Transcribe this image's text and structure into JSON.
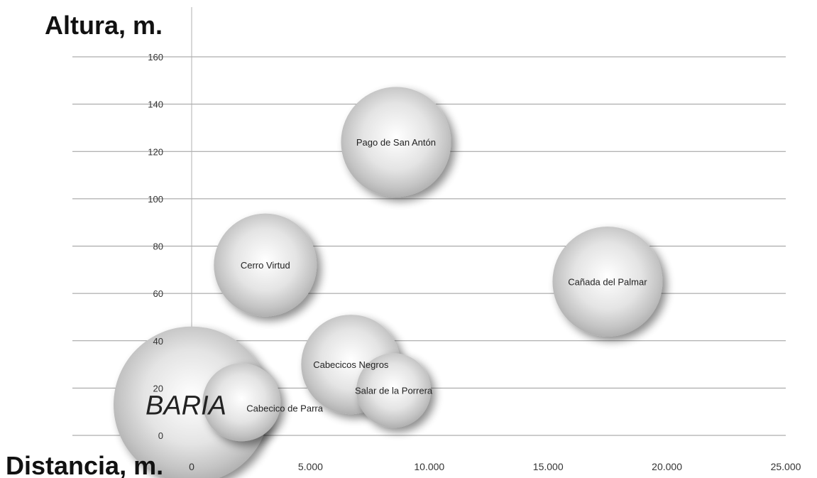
{
  "chart_data": {
    "type": "bubble",
    "ylabel": "Altura, m.",
    "xlabel": "Distancia, m.",
    "xlim": [
      -5000,
      25000
    ],
    "ylim": [
      0,
      160
    ],
    "xticks": [
      {
        "value": 0,
        "label": "0"
      },
      {
        "value": 5000,
        "label": "5.000"
      },
      {
        "value": 10000,
        "label": "10.000"
      },
      {
        "value": 15000,
        "label": "15.000"
      },
      {
        "value": 20000,
        "label": "20.000"
      },
      {
        "value": 25000,
        "label": "25.000"
      }
    ],
    "yticks": [
      {
        "value": 0,
        "label": "0"
      },
      {
        "value": 20,
        "label": "20"
      },
      {
        "value": 40,
        "label": "40"
      },
      {
        "value": 60,
        "label": "60"
      },
      {
        "value": 80,
        "label": "80"
      },
      {
        "value": 100,
        "label": "100"
      },
      {
        "value": 120,
        "label": "120"
      },
      {
        "value": 140,
        "label": "140"
      },
      {
        "value": 160,
        "label": "160"
      }
    ],
    "grid": true,
    "bubbles": [
      {
        "name": "BARIA",
        "x": 0,
        "y": 13,
        "size": 2.2,
        "emphasis": true
      },
      {
        "name": "Cabecico de Parra",
        "x": 2100,
        "y": 14,
        "size": 1.1
      },
      {
        "name": "Salar de la Porrera",
        "x": 8500,
        "y": 19,
        "size": 1.05
      },
      {
        "name": "Cabecicos Negros",
        "x": 6700,
        "y": 30,
        "size": 1.4
      },
      {
        "name": "Cerro Virtud",
        "x": 3100,
        "y": 72,
        "size": 1.45
      },
      {
        "name": "Cañada del Palmar",
        "x": 17500,
        "y": 65,
        "size": 1.55
      },
      {
        "name": "Pago de San Antón",
        "x": 8600,
        "y": 124,
        "size": 1.55
      }
    ]
  }
}
